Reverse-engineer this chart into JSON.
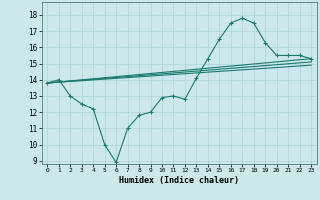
{
  "xlabel": "Humidex (Indice chaleur)",
  "bg_color": "#cce8ea",
  "grid_color": "#b0d8dc",
  "line_color": "#1a7a6e",
  "xlim": [
    -0.5,
    23.5
  ],
  "ylim": [
    8.8,
    18.8
  ],
  "xticks": [
    0,
    1,
    2,
    3,
    4,
    5,
    6,
    7,
    8,
    9,
    10,
    11,
    12,
    13,
    14,
    15,
    16,
    17,
    18,
    19,
    20,
    21,
    22,
    23
  ],
  "yticks": [
    9,
    10,
    11,
    12,
    13,
    14,
    15,
    16,
    17,
    18
  ],
  "line1_x": [
    0,
    1,
    2,
    3,
    4,
    5,
    6,
    7,
    8,
    9,
    10,
    11,
    12,
    13,
    14,
    15,
    16,
    17,
    18,
    19,
    20,
    21,
    22,
    23
  ],
  "line1_y": [
    13.8,
    14.0,
    13.0,
    12.5,
    12.2,
    10.0,
    8.9,
    11.0,
    11.8,
    12.0,
    12.9,
    13.0,
    12.8,
    14.1,
    15.3,
    16.5,
    17.5,
    17.8,
    17.5,
    16.3,
    15.5,
    15.5,
    15.5,
    15.3
  ],
  "line2_x": [
    0,
    23
  ],
  "line2_y": [
    13.8,
    15.3
  ],
  "line3_x": [
    0,
    23
  ],
  "line3_y": [
    13.8,
    15.1
  ],
  "line4_x": [
    0,
    23
  ],
  "line4_y": [
    13.8,
    14.9
  ]
}
